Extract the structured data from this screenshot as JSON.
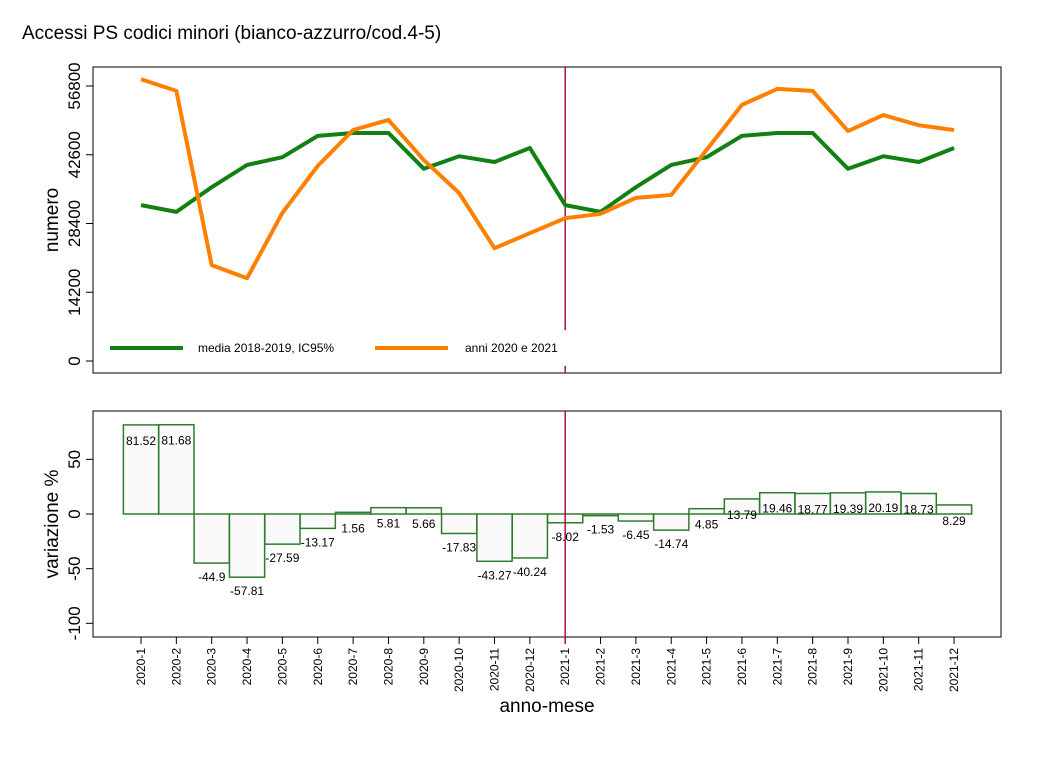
{
  "chart_data": [
    {
      "type": "line",
      "title": "Accessi PS codici minori (bianco-azzurro/cod.4-5)",
      "ylabel": "numero",
      "xlabel": "",
      "ylim": [
        0,
        58000
      ],
      "yticks": [
        0,
        14200,
        28400,
        42600,
        56800
      ],
      "x": [
        "2020-1",
        "2020-2",
        "2020-3",
        "2020-4",
        "2020-5",
        "2020-6",
        "2020-7",
        "2020-8",
        "2020-9",
        "2020-10",
        "2020-11",
        "2020-12",
        "2021-1",
        "2021-2",
        "2021-3",
        "2021-4",
        "2021-5",
        "2021-6",
        "2021-7",
        "2021-8",
        "2021-9",
        "2021-10",
        "2021-11",
        "2021-12"
      ],
      "series": [
        {
          "name": "media 2018-2019, IC95%",
          "color": "#138013",
          "values": [
            32200,
            30800,
            35900,
            40500,
            42100,
            46500,
            47100,
            47100,
            39700,
            42300,
            41100,
            44000,
            32200,
            30800,
            35900,
            40500,
            42100,
            46500,
            47100,
            47100,
            39700,
            42300,
            41100,
            44000
          ]
        },
        {
          "name": "anni 2020 e 2021",
          "color": "#ff8000",
          "values": [
            58200,
            55800,
            19800,
            17100,
            30600,
            40300,
            47700,
            49800,
            41500,
            34700,
            23300,
            26400,
            29500,
            30400,
            33700,
            34300,
            43600,
            52900,
            56200,
            55800,
            47500,
            50800,
            48700,
            47700
          ]
        }
      ],
      "legend": "bottom-left",
      "reference_x": "2021-1"
    },
    {
      "type": "bar",
      "ylabel": "variazione %",
      "xlabel": "anno-mese",
      "ylim": [
        -105,
        88
      ],
      "yticks": [
        -100,
        -50,
        0,
        50
      ],
      "categories": [
        "2020-1",
        "2020-2",
        "2020-3",
        "2020-4",
        "2020-5",
        "2020-6",
        "2020-7",
        "2020-8",
        "2020-9",
        "2020-10",
        "2020-11",
        "2020-12",
        "2021-1",
        "2021-2",
        "2021-3",
        "2021-4",
        "2021-5",
        "2021-6",
        "2021-7",
        "2021-8",
        "2021-9",
        "2021-10",
        "2021-11",
        "2021-12"
      ],
      "values": [
        81.52,
        81.68,
        -44.9,
        -57.81,
        -27.59,
        -13.17,
        1.56,
        5.81,
        5.66,
        -17.83,
        -43.27,
        -40.24,
        -8.02,
        -1.53,
        -6.45,
        -14.74,
        4.85,
        13.79,
        19.46,
        18.77,
        19.39,
        20.19,
        18.73,
        8.29
      ],
      "labels": [
        "81.52",
        "81.68",
        "-44.9",
        "-57.81",
        "-27.59",
        "-13.17",
        "1.56",
        "5.81",
        "5.66",
        "-17.83",
        "-43.27",
        "-40.24",
        "-8.02",
        "-1.53",
        "-6.45",
        "-14.74",
        "4.85",
        "13.79",
        "19.46",
        "18.77",
        "19.39",
        "20.19",
        "18.73",
        "8.29"
      ],
      "reference_x": "2021-1"
    }
  ]
}
